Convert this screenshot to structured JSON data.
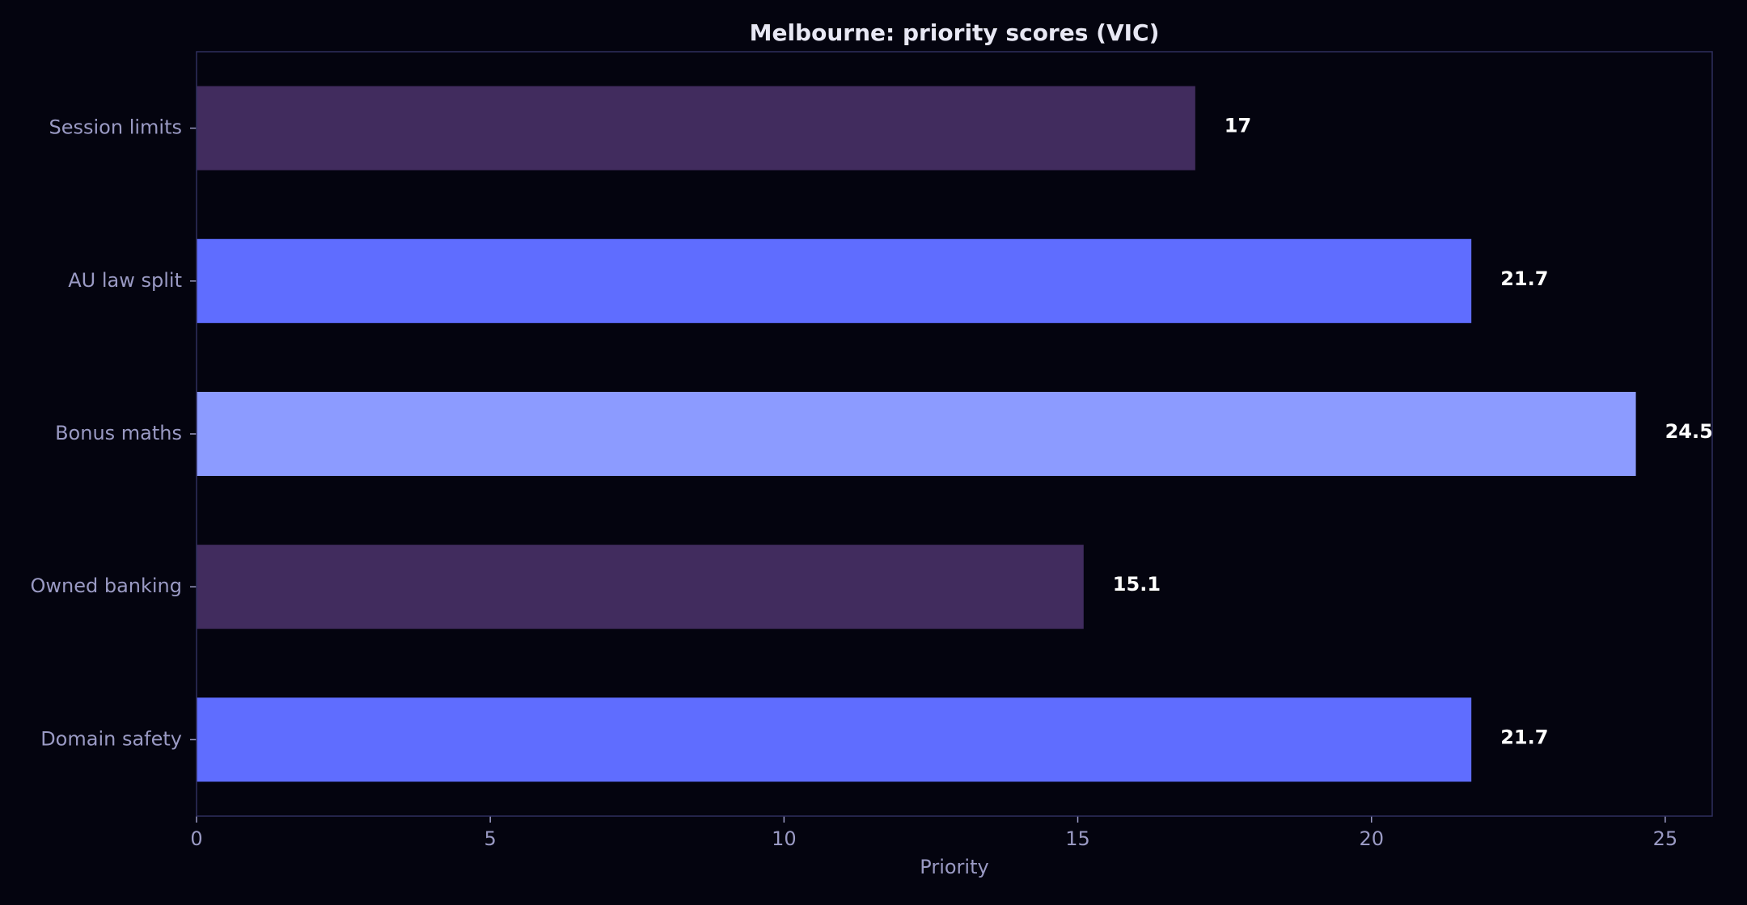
{
  "chart_data": {
    "type": "bar",
    "orientation": "horizontal",
    "title": "Melbourne: priority scores (VIC)",
    "xlabel": "Priority",
    "ylabel": "",
    "xlim": [
      0,
      25.8
    ],
    "xticks": [
      0,
      5,
      10,
      15,
      20,
      25
    ],
    "grid": false,
    "categories": [
      "Session limits",
      "AU law split",
      "Bonus maths",
      "Owned banking",
      "Domain safety"
    ],
    "values": [
      17,
      21.7,
      24.5,
      15.1,
      21.7
    ],
    "value_labels": [
      "17",
      "21.7",
      "24.5",
      "15.1",
      "21.7"
    ],
    "bar_colors": [
      "#412c5e",
      "#5f6dff",
      "#8c9bff",
      "#412c5e",
      "#5f6dff"
    ]
  }
}
